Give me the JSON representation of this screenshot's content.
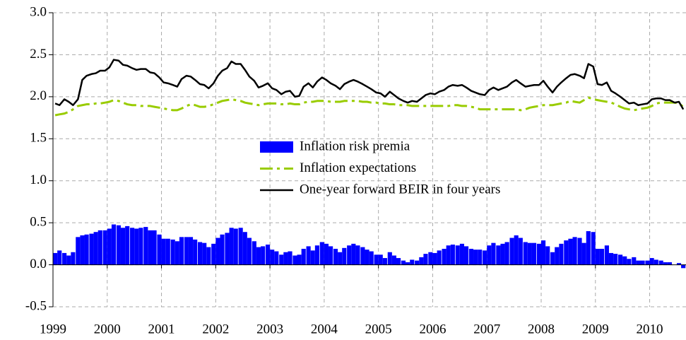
{
  "chart_data": {
    "type": "combo",
    "xlim": [
      1999,
      2010.67
    ],
    "xticks": [
      1999,
      2000,
      2001,
      2002,
      2003,
      2004,
      2005,
      2006,
      2007,
      2008,
      2009,
      2010
    ],
    "ylim": [
      -0.5,
      3.0
    ],
    "yticks": [
      {
        "value": -0.5,
        "label": "-0.5"
      },
      {
        "value": 0,
        "label": "0.0"
      },
      {
        "value": 0.5,
        "label": "0.5"
      },
      {
        "value": 1,
        "label": "1.0"
      },
      {
        "value": 1.5,
        "label": "1.5"
      },
      {
        "value": 2,
        "label": "2.0"
      },
      {
        "value": 2.5,
        "label": "2.5"
      },
      {
        "value": 3,
        "label": "3.0"
      }
    ],
    "grid": true,
    "x": [
      1999.0,
      1999.08,
      1999.17,
      1999.25,
      1999.33,
      1999.42,
      1999.5,
      1999.58,
      1999.67,
      1999.75,
      1999.83,
      1999.92,
      2000.0,
      2000.08,
      2000.17,
      2000.25,
      2000.33,
      2000.42,
      2000.5,
      2000.58,
      2000.67,
      2000.75,
      2000.83,
      2000.92,
      2001.0,
      2001.08,
      2001.17,
      2001.25,
      2001.33,
      2001.42,
      2001.5,
      2001.58,
      2001.67,
      2001.75,
      2001.83,
      2001.92,
      2002.0,
      2002.08,
      2002.17,
      2002.25,
      2002.33,
      2002.42,
      2002.5,
      2002.58,
      2002.67,
      2002.75,
      2002.83,
      2002.92,
      2003.0,
      2003.08,
      2003.17,
      2003.25,
      2003.33,
      2003.42,
      2003.5,
      2003.58,
      2003.67,
      2003.75,
      2003.83,
      2003.92,
      2004.0,
      2004.08,
      2004.17,
      2004.25,
      2004.33,
      2004.42,
      2004.5,
      2004.58,
      2004.67,
      2004.75,
      2004.83,
      2004.92,
      2005.0,
      2005.08,
      2005.17,
      2005.25,
      2005.33,
      2005.42,
      2005.5,
      2005.58,
      2005.67,
      2005.75,
      2005.83,
      2005.92,
      2006.0,
      2006.08,
      2006.17,
      2006.25,
      2006.33,
      2006.42,
      2006.5,
      2006.58,
      2006.67,
      2006.75,
      2006.83,
      2006.92,
      2007.0,
      2007.08,
      2007.17,
      2007.25,
      2007.33,
      2007.42,
      2007.5,
      2007.58,
      2007.67,
      2007.75,
      2007.83,
      2007.92,
      2008.0,
      2008.08,
      2008.17,
      2008.25,
      2008.33,
      2008.42,
      2008.5,
      2008.58,
      2008.67,
      2008.75,
      2008.83,
      2008.92,
      2009.0,
      2009.08,
      2009.17,
      2009.25,
      2009.33,
      2009.42,
      2009.5,
      2009.58,
      2009.67,
      2009.75,
      2009.83,
      2009.92,
      2010.0,
      2010.08,
      2010.17,
      2010.25,
      2010.33,
      2010.42,
      2010.5,
      2010.58
    ],
    "series": [
      {
        "name": "Inflation risk premia",
        "type": "bar",
        "color": "#0000ff",
        "values": [
          0.14,
          0.17,
          0.14,
          0.11,
          0.15,
          0.33,
          0.35,
          0.36,
          0.37,
          0.39,
          0.41,
          0.41,
          0.43,
          0.48,
          0.47,
          0.44,
          0.46,
          0.44,
          0.43,
          0.44,
          0.45,
          0.41,
          0.41,
          0.36,
          0.31,
          0.31,
          0.3,
          0.28,
          0.33,
          0.33,
          0.33,
          0.3,
          0.27,
          0.26,
          0.21,
          0.25,
          0.32,
          0.36,
          0.38,
          0.44,
          0.43,
          0.44,
          0.39,
          0.32,
          0.28,
          0.21,
          0.22,
          0.24,
          0.18,
          0.16,
          0.12,
          0.15,
          0.16,
          0.11,
          0.12,
          0.19,
          0.22,
          0.17,
          0.23,
          0.27,
          0.25,
          0.22,
          0.19,
          0.15,
          0.2,
          0.23,
          0.25,
          0.23,
          0.21,
          0.18,
          0.16,
          0.12,
          0.12,
          0.08,
          0.15,
          0.11,
          0.08,
          0.05,
          0.03,
          0.06,
          0.05,
          0.09,
          0.13,
          0.15,
          0.14,
          0.17,
          0.19,
          0.23,
          0.24,
          0.23,
          0.25,
          0.22,
          0.19,
          0.18,
          0.18,
          0.17,
          0.23,
          0.26,
          0.23,
          0.25,
          0.27,
          0.32,
          0.35,
          0.32,
          0.27,
          0.26,
          0.26,
          0.25,
          0.29,
          0.22,
          0.15,
          0.21,
          0.25,
          0.29,
          0.31,
          0.33,
          0.32,
          0.26,
          0.4,
          0.39,
          0.19,
          0.19,
          0.23,
          0.14,
          0.13,
          0.12,
          0.1,
          0.07,
          0.09,
          0.05,
          0.05,
          0.05,
          0.08,
          0.06,
          0.05,
          0.03,
          0.03,
          0.0,
          0.02,
          -0.04
        ]
      },
      {
        "name": "Inflation expectations",
        "type": "line",
        "dashed": true,
        "color": "#99cc00",
        "values": [
          1.78,
          1.79,
          1.8,
          1.82,
          1.85,
          1.89,
          1.9,
          1.91,
          1.91,
          1.92,
          1.92,
          1.93,
          1.94,
          1.96,
          1.95,
          1.93,
          1.91,
          1.9,
          1.9,
          1.89,
          1.89,
          1.89,
          1.88,
          1.87,
          1.86,
          1.85,
          1.84,
          1.84,
          1.86,
          1.89,
          1.91,
          1.9,
          1.88,
          1.88,
          1.89,
          1.91,
          1.93,
          1.95,
          1.96,
          1.97,
          1.96,
          1.95,
          1.93,
          1.92,
          1.91,
          1.9,
          1.91,
          1.92,
          1.92,
          1.92,
          1.91,
          1.91,
          1.92,
          1.91,
          1.91,
          1.93,
          1.94,
          1.94,
          1.95,
          1.95,
          1.95,
          1.94,
          1.94,
          1.94,
          1.95,
          1.95,
          1.95,
          1.95,
          1.94,
          1.94,
          1.93,
          1.93,
          1.92,
          1.92,
          1.91,
          1.91,
          1.9,
          1.9,
          1.9,
          1.89,
          1.89,
          1.89,
          1.89,
          1.89,
          1.89,
          1.89,
          1.89,
          1.89,
          1.9,
          1.9,
          1.89,
          1.89,
          1.88,
          1.87,
          1.85,
          1.85,
          1.85,
          1.85,
          1.85,
          1.85,
          1.85,
          1.85,
          1.85,
          1.84,
          1.85,
          1.87,
          1.88,
          1.89,
          1.9,
          1.9,
          1.9,
          1.91,
          1.92,
          1.93,
          1.95,
          1.94,
          1.93,
          1.96,
          1.99,
          1.97,
          1.96,
          1.95,
          1.94,
          1.93,
          1.91,
          1.88,
          1.86,
          1.85,
          1.84,
          1.85,
          1.86,
          1.87,
          1.89,
          1.92,
          1.93,
          1.93,
          1.93,
          1.93,
          1.92,
          1.88
        ]
      },
      {
        "name": "One-year forward BEIR in four years",
        "type": "line",
        "color": "#000000",
        "values": [
          1.92,
          1.9,
          1.97,
          1.94,
          1.9,
          1.97,
          2.2,
          2.25,
          2.27,
          2.28,
          2.31,
          2.31,
          2.35,
          2.44,
          2.43,
          2.38,
          2.37,
          2.34,
          2.32,
          2.33,
          2.33,
          2.29,
          2.28,
          2.23,
          2.17,
          2.16,
          2.14,
          2.12,
          2.21,
          2.25,
          2.24,
          2.2,
          2.15,
          2.14,
          2.1,
          2.16,
          2.25,
          2.31,
          2.34,
          2.42,
          2.39,
          2.39,
          2.32,
          2.24,
          2.19,
          2.11,
          2.13,
          2.16,
          2.1,
          2.08,
          2.03,
          2.06,
          2.07,
          2.0,
          2.01,
          2.12,
          2.16,
          2.11,
          2.18,
          2.23,
          2.2,
          2.16,
          2.13,
          2.09,
          2.15,
          2.18,
          2.2,
          2.18,
          2.15,
          2.12,
          2.09,
          2.05,
          2.04,
          2.0,
          2.06,
          2.02,
          1.98,
          1.95,
          1.93,
          1.95,
          1.94,
          1.98,
          2.02,
          2.04,
          2.03,
          2.06,
          2.08,
          2.12,
          2.14,
          2.13,
          2.14,
          2.11,
          2.07,
          2.05,
          2.03,
          2.02,
          2.08,
          2.11,
          2.08,
          2.1,
          2.12,
          2.17,
          2.2,
          2.16,
          2.12,
          2.13,
          2.14,
          2.14,
          2.19,
          2.12,
          2.05,
          2.12,
          2.17,
          2.22,
          2.26,
          2.27,
          2.25,
          2.22,
          2.39,
          2.36,
          2.15,
          2.14,
          2.17,
          2.07,
          2.04,
          2.0,
          1.96,
          1.92,
          1.93,
          1.9,
          1.91,
          1.92,
          1.97,
          1.98,
          1.98,
          1.96,
          1.96,
          1.93,
          1.94,
          1.85
        ]
      }
    ]
  }
}
